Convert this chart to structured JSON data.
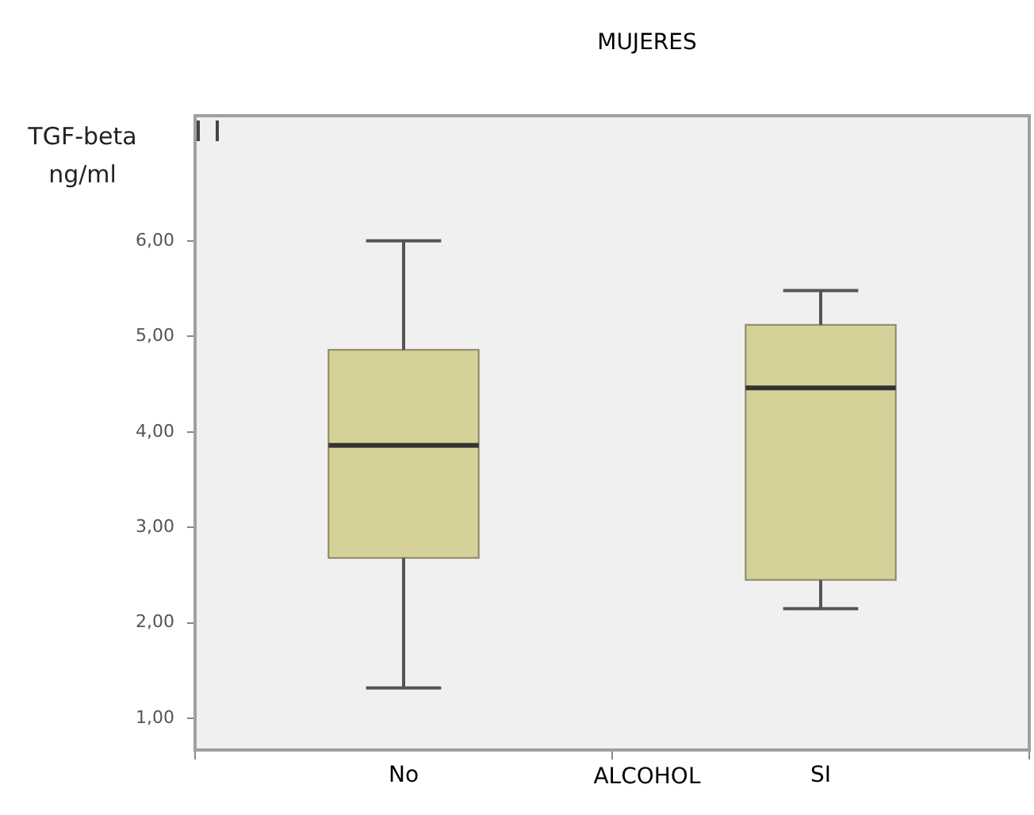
{
  "chart_data": {
    "type": "box",
    "title": "MUJERES",
    "xlabel": "ALCOHOL",
    "ylabel": "TGF-beta ng/ml",
    "categories": [
      "No",
      "SI"
    ],
    "series": [
      {
        "color": "#d6d198",
        "boxes": [
          {
            "low": 1.32,
            "q1": 2.68,
            "median": 3.86,
            "q3": 4.86,
            "high": 6.0
          },
          {
            "low": 2.15,
            "q1": 2.45,
            "median": 4.46,
            "q3": 5.12,
            "high": 5.48
          }
        ]
      }
    ],
    "ylim": [
      0.67,
      7.31
    ],
    "yticks": [
      {
        "value": 1,
        "label": "1,00"
      },
      {
        "value": 2,
        "label": "2,00"
      },
      {
        "value": 3,
        "label": "3,00"
      },
      {
        "value": 4,
        "label": "4,00"
      },
      {
        "value": 5,
        "label": "5,00"
      },
      {
        "value": 6,
        "label": "6,00"
      }
    ],
    "legend": false
  }
}
